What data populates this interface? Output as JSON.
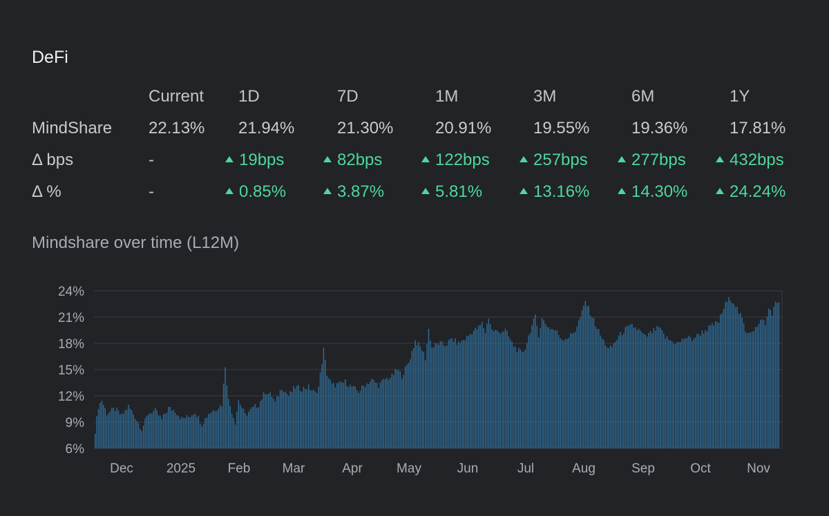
{
  "header": {
    "title": "DeFi"
  },
  "metrics": {
    "columns": [
      "Current",
      "1D",
      "7D",
      "1M",
      "3M",
      "6M",
      "1Y"
    ],
    "rows": [
      {
        "label": "MindShare",
        "values": [
          "22.13%",
          "21.94%",
          "21.30%",
          "20.91%",
          "19.55%",
          "19.36%",
          "17.81%"
        ],
        "trend": [
          "none",
          "none",
          "none",
          "none",
          "none",
          "none",
          "none"
        ]
      },
      {
        "label": "Δ bps",
        "values": [
          "-",
          "19bps",
          "82bps",
          "122bps",
          "257bps",
          "277bps",
          "432bps"
        ],
        "trend": [
          "none",
          "up",
          "up",
          "up",
          "up",
          "up",
          "up"
        ]
      },
      {
        "label": "Δ %",
        "values": [
          "-",
          "0.85%",
          "3.87%",
          "5.81%",
          "13.16%",
          "14.30%",
          "24.24%"
        ],
        "trend": [
          "none",
          "up",
          "up",
          "up",
          "up",
          "up",
          "up"
        ]
      }
    ]
  },
  "colors": {
    "positive": "#4fd79c",
    "bar": "#2f6b95",
    "grid": "#3a3e45"
  },
  "chart_data": {
    "type": "bar",
    "title": "Mindshare over time (L12M)",
    "xlabel": "",
    "ylabel": "",
    "ylim": [
      6,
      24
    ],
    "y_ticks": [
      "6%",
      "9%",
      "12%",
      "15%",
      "18%",
      "21%",
      "24%"
    ],
    "x_ticks": [
      "Dec",
      "2025",
      "Feb",
      "Mar",
      "Apr",
      "May",
      "Jun",
      "Jul",
      "Aug",
      "Sep",
      "Oct",
      "Nov"
    ],
    "anchors": [
      [
        0,
        8.0
      ],
      [
        2,
        10.8
      ],
      [
        4,
        11.5
      ],
      [
        7,
        10.0
      ],
      [
        12,
        10.5
      ],
      [
        16,
        9.7
      ],
      [
        20,
        10.8
      ],
      [
        24,
        9.6
      ],
      [
        28,
        8.2
      ],
      [
        32,
        10.0
      ],
      [
        36,
        10.3
      ],
      [
        40,
        9.3
      ],
      [
        44,
        10.6
      ],
      [
        48,
        10.3
      ],
      [
        52,
        9.4
      ],
      [
        56,
        9.6
      ],
      [
        60,
        10.2
      ],
      [
        64,
        8.8
      ],
      [
        68,
        10.0
      ],
      [
        72,
        10.5
      ],
      [
        76,
        11.0
      ],
      [
        78,
        15.5
      ],
      [
        80,
        11.5
      ],
      [
        84,
        9.0
      ],
      [
        86,
        11.5
      ],
      [
        90,
        9.8
      ],
      [
        94,
        10.5
      ],
      [
        98,
        11.0
      ],
      [
        102,
        12.5
      ],
      [
        106,
        12.0
      ],
      [
        108,
        11.2
      ],
      [
        112,
        13.0
      ],
      [
        116,
        12.0
      ],
      [
        120,
        13.0
      ],
      [
        124,
        12.8
      ],
      [
        128,
        13.0
      ],
      [
        132,
        12.3
      ],
      [
        134,
        13.0
      ],
      [
        137,
        17.3
      ],
      [
        139,
        14.5
      ],
      [
        142,
        13.2
      ],
      [
        146,
        13.3
      ],
      [
        150,
        13.6
      ],
      [
        154,
        13.0
      ],
      [
        158,
        12.5
      ],
      [
        162,
        13.3
      ],
      [
        166,
        13.8
      ],
      [
        170,
        13.2
      ],
      [
        174,
        13.9
      ],
      [
        178,
        14.2
      ],
      [
        181,
        15.0
      ],
      [
        184,
        14.3
      ],
      [
        188,
        15.8
      ],
      [
        192,
        18.3
      ],
      [
        196,
        17.3
      ],
      [
        198,
        16.3
      ],
      [
        200,
        19.6
      ],
      [
        202,
        17.5
      ],
      [
        206,
        18.0
      ],
      [
        210,
        17.8
      ],
      [
        214,
        18.5
      ],
      [
        218,
        18.0
      ],
      [
        222,
        18.5
      ],
      [
        226,
        19.3
      ],
      [
        230,
        19.8
      ],
      [
        232,
        20.3
      ],
      [
        234,
        19.3
      ],
      [
        236,
        21.0
      ],
      [
        238,
        19.5
      ],
      [
        242,
        19.3
      ],
      [
        246,
        19.5
      ],
      [
        250,
        18.0
      ],
      [
        252,
        17.5
      ],
      [
        256,
        16.8
      ],
      [
        258,
        17.5
      ],
      [
        261,
        19.5
      ],
      [
        264,
        21.0
      ],
      [
        266,
        19.0
      ],
      [
        268,
        20.8
      ],
      [
        272,
        19.8
      ],
      [
        276,
        19.5
      ],
      [
        280,
        18.5
      ],
      [
        284,
        18.7
      ],
      [
        288,
        19.5
      ],
      [
        292,
        21.5
      ],
      [
        294,
        22.8
      ],
      [
        297,
        21.5
      ],
      [
        300,
        20.2
      ],
      [
        304,
        18.5
      ],
      [
        306,
        18.0
      ],
      [
        308,
        17.3
      ],
      [
        310,
        17.6
      ],
      [
        314,
        18.8
      ],
      [
        318,
        19.6
      ],
      [
        322,
        20.0
      ],
      [
        326,
        19.5
      ],
      [
        330,
        18.7
      ],
      [
        334,
        19.3
      ],
      [
        338,
        19.8
      ],
      [
        342,
        18.7
      ],
      [
        346,
        18.2
      ],
      [
        350,
        18.0
      ],
      [
        354,
        18.7
      ],
      [
        358,
        18.5
      ],
      [
        362,
        19.0
      ],
      [
        366,
        19.5
      ],
      [
        370,
        20.0
      ],
      [
        374,
        20.5
      ],
      [
        378,
        22.5
      ],
      [
        381,
        23.2
      ],
      [
        384,
        22.4
      ],
      [
        386,
        21.5
      ],
      [
        388,
        20.8
      ],
      [
        390,
        19.3
      ],
      [
        394,
        19.5
      ],
      [
        398,
        20.0
      ],
      [
        400,
        21.0
      ],
      [
        402,
        20.0
      ],
      [
        404,
        22.0
      ],
      [
        406,
        21.5
      ],
      [
        408,
        22.5
      ],
      [
        410,
        22.8
      ]
    ]
  }
}
